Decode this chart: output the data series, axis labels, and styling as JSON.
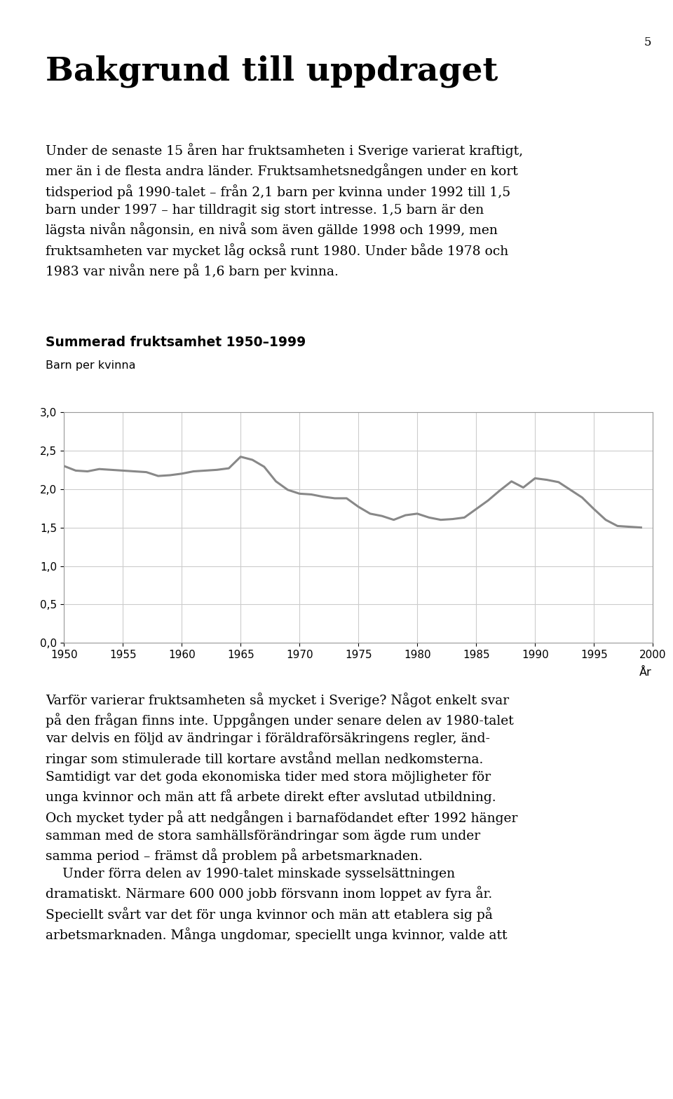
{
  "page_number": "5",
  "title": "Bakgrund till uppdraget",
  "title_fontsize": 34,
  "body_text_1_lines": [
    "Under de senaste 15 åren har fruktsamheten i Sverige varierat kraftigt,",
    "mer än i de flesta andra länder. Fruktsamhetsnedgången under en kort",
    "tidsperiod på 1990-talet – från 2,1 barn per kvinna under 1992 till 1,5",
    "barn under 1997 – har tilldragit sig stort intresse. 1,5 barn är den",
    "lägsta nivån någonsin, en nivå som även gällde 1998 och 1999, men",
    "fruktsamheten var mycket låg också runt 1980. Under både 1978 och",
    "1983 var nivån nere på 1,6 barn per kvinna."
  ],
  "chart_title": "Summerad fruktsamhet 1950–1999",
  "chart_ylabel": "Barn per kvinna",
  "chart_xlabel": "År",
  "chart_xlim": [
    1950,
    2000
  ],
  "chart_ylim": [
    0.0,
    3.0
  ],
  "chart_yticks": [
    0.0,
    0.5,
    1.0,
    1.5,
    2.0,
    2.5,
    3.0
  ],
  "chart_ytick_labels": [
    "0,0",
    "0,5",
    "1,0",
    "1,5",
    "2,0",
    "2,5",
    "3,0"
  ],
  "chart_xticks": [
    1950,
    1955,
    1960,
    1965,
    1970,
    1975,
    1980,
    1985,
    1990,
    1995,
    2000
  ],
  "line_color": "#888888",
  "line_width": 2.2,
  "grid_color": "#cccccc",
  "background_color": "#ffffff",
  "body_text_2_lines": [
    "Varför varierar fruktsamheten så mycket i Sverige? Något enkelt svar",
    "på den frågan finns inte. Uppgången under senare delen av 1980-talet",
    "var delvis en följd av ändringar i föräldraförsäkringens regler, änd-",
    "ringar som stimulerade till kortare avstånd mellan nedkomsterna.",
    "Samtidigt var det goda ekonomiska tider med stora möjligheter för",
    "unga kvinnor och män att få arbete direkt efter avslutad utbildning.",
    "Och mycket tyder på att nedgången i barnafödandet efter 1992 hänger",
    "samman med de stora samhällsförändringar som ägde rum under",
    "samma period – främst då problem på arbetsmarknaden.",
    "    Under förra delen av 1990-talet minskade sysselsättningen",
    "dramatiskt. Närmare 600 000 jobb försvann inom loppet av fyra år.",
    "Speciellt svårt var det för unga kvinnor och män att etablera sig på",
    "arbetsmarknaden. Många ungdomar, speciellt unga kvinnor, valde att"
  ],
  "years": [
    1950,
    1951,
    1952,
    1953,
    1954,
    1955,
    1956,
    1957,
    1958,
    1959,
    1960,
    1961,
    1962,
    1963,
    1964,
    1965,
    1966,
    1967,
    1968,
    1969,
    1970,
    1971,
    1972,
    1973,
    1974,
    1975,
    1976,
    1977,
    1978,
    1979,
    1980,
    1981,
    1982,
    1983,
    1984,
    1985,
    1986,
    1987,
    1988,
    1989,
    1990,
    1991,
    1992,
    1993,
    1994,
    1995,
    1996,
    1997,
    1998,
    1999
  ],
  "values": [
    2.3,
    2.24,
    2.23,
    2.26,
    2.25,
    2.24,
    2.23,
    2.22,
    2.17,
    2.18,
    2.2,
    2.23,
    2.24,
    2.25,
    2.27,
    2.42,
    2.38,
    2.29,
    2.1,
    1.99,
    1.94,
    1.93,
    1.9,
    1.88,
    1.88,
    1.77,
    1.68,
    1.65,
    1.6,
    1.66,
    1.68,
    1.63,
    1.6,
    1.61,
    1.63,
    1.74,
    1.85,
    1.98,
    2.1,
    2.02,
    2.14,
    2.12,
    2.09,
    1.99,
    1.89,
    1.74,
    1.6,
    1.52,
    1.51,
    1.5
  ]
}
